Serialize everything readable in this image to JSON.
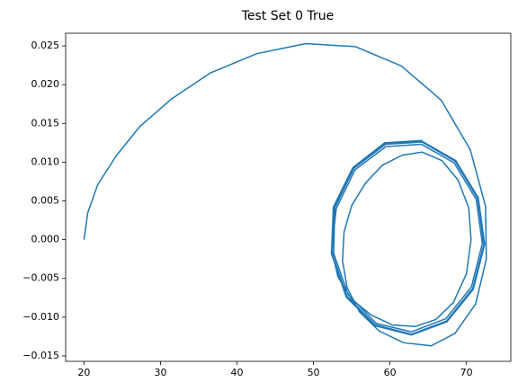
{
  "chart_data": {
    "type": "line",
    "title": "Test Set 0 True",
    "color": "#1f77b4",
    "xlim": [
      17.6,
      75.8
    ],
    "ylim": [
      -0.0157,
      0.02663
    ],
    "xticks": [
      20,
      30,
      40,
      50,
      60,
      70
    ],
    "yticks": [
      {
        "value": -0.015,
        "label": "−0.015"
      },
      {
        "value": -0.01,
        "label": "−0.010"
      },
      {
        "value": -0.005,
        "label": "−0.005"
      },
      {
        "value": 0,
        "label": "0.000"
      },
      {
        "value": 0.005,
        "label": "0.005"
      },
      {
        "value": 0.01,
        "label": "0.010"
      },
      {
        "value": 0.015,
        "label": "0.015"
      },
      {
        "value": 0.02,
        "label": "0.020"
      },
      {
        "value": 0.025,
        "label": "0.025"
      }
    ],
    "x": [
      20,
      20.5,
      21.8,
      24.2,
      27.3,
      31.5,
      36.5,
      42.6,
      49,
      55.5,
      61.5,
      66.7,
      70.5,
      72.5,
      72.6,
      71.2,
      68.5,
      65.4,
      61.8,
      58.6,
      56,
      54.4,
      53.8,
      54,
      55,
      56.8,
      59,
      61.6,
      64.2,
      66.8,
      68.9,
      70.3,
      70.6,
      70.0,
      68.3,
      66,
      63.3,
      60.3,
      57.5,
      55,
      53.2,
      52.4,
      52.97,
      55.42,
      59.45,
      64.13,
      68.4,
      71.27,
      72.08,
      70.65,
      67.3,
      62.81,
      58.2,
      54.53,
      52.65,
      52.78,
      55.28,
      59.41,
      64.19,
      68.54,
      71.46,
      72.28,
      70.82,
      67.39,
      62.81,
      58.1,
      54.37,
      52.44,
      52.68,
      55.2,
      59.35,
      64.2,
      68.6,
      71.55,
      72.38,
      70.9,
      67.45,
      62.8,
      58.05,
      54.28,
      52.35,
      52.6,
      55.15,
      59.3,
      64.2
    ],
    "values": [
      0,
      0.0035,
      0.0071,
      0.0108,
      0.0146,
      0.0182,
      0.0215,
      0.024,
      0.0253,
      0.0249,
      0.0224,
      0.018,
      0.0116,
      0.0043,
      -0.0025,
      -0.0083,
      -0.0121,
      -0.0137,
      -0.0133,
      -0.0118,
      -0.0093,
      -0.0062,
      -0.0027,
      0.001,
      0.0044,
      0.0073,
      0.0096,
      0.0109,
      0.0113,
      0.0102,
      0.0077,
      0.0041,
      0,
      -0.0044,
      -0.0081,
      -0.0103,
      -0.0112,
      -0.011,
      -0.0097,
      -0.0077,
      -0.0048,
      -0.0014,
      0.004,
      0.009,
      0.012,
      0.0123,
      0.0099,
      0.0052,
      -0.0005,
      -0.0061,
      -0.0102,
      -0.0119,
      -0.0108,
      -0.0071,
      -0.0018,
      0.0041,
      0.0092,
      0.0123,
      0.0126,
      0.0101,
      0.0053,
      -0.0006,
      -0.0063,
      -0.0105,
      -0.0122,
      -0.011,
      -0.0073,
      -0.0018,
      0.0042,
      0.0093,
      0.0124,
      0.0127,
      0.0102,
      0.0054,
      -0.0006,
      -0.0064,
      -0.0106,
      -0.0123,
      -0.0111,
      -0.0074,
      -0.0018,
      0.0042,
      0.0093,
      0.0125,
      0.0128
    ]
  }
}
